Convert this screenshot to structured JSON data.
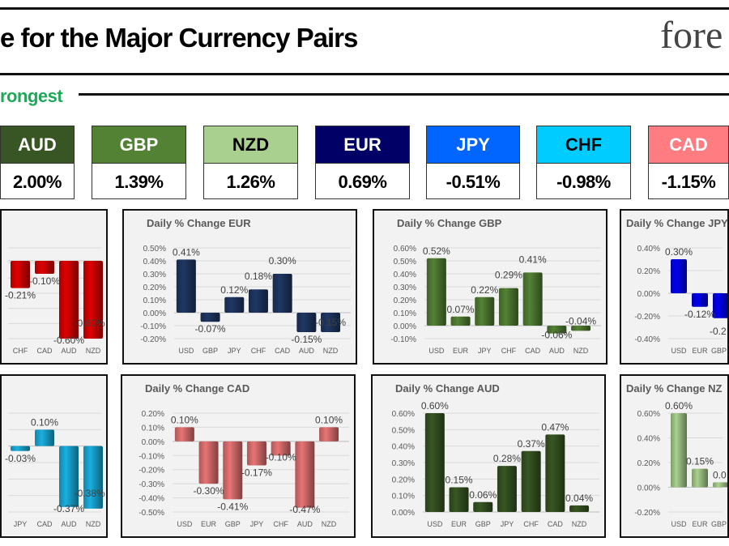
{
  "header": {
    "title": "e for the Major Currency Pairs",
    "logo_text": "fore"
  },
  "section": {
    "label": "rongest",
    "color": "#1fa85a"
  },
  "currencies": [
    {
      "code": "AUD",
      "value": "2.00%",
      "bg": "#375623",
      "fg": "#ffffff"
    },
    {
      "code": "GBP",
      "value": "1.39%",
      "bg": "#548235",
      "fg": "#ffffff"
    },
    {
      "code": "NZD",
      "value": "1.26%",
      "bg": "#a9d08e",
      "fg": "#000000"
    },
    {
      "code": "EUR",
      "value": "0.69%",
      "bg": "#000066",
      "fg": "#ffffff"
    },
    {
      "code": "JPY",
      "value": "-0.51%",
      "bg": "#0066ff",
      "fg": "#ffffff"
    },
    {
      "code": "CHF",
      "value": "-0.98%",
      "bg": "#00ccff",
      "fg": "#000000"
    },
    {
      "code": "CAD",
      "value": "-1.15%",
      "bg": "#ff7c80",
      "fg": "#ffffff"
    }
  ],
  "chart_data": [
    {
      "type": "bar",
      "title": "",
      "categories": [
        "CHF",
        "CAD",
        "AUD",
        "NZD"
      ],
      "values": [
        -0.21,
        -0.1,
        -0.6,
        -0.6
      ],
      "labels": [
        "-0.21%",
        "-0.10%",
        "-0.60%",
        "-0.60%"
      ],
      "color": "#e00000",
      "ylim": [
        -0.6,
        0.1
      ],
      "yticks": [],
      "clip": "left",
      "grid": true
    },
    {
      "type": "bar",
      "title": "Daily % Change EUR",
      "categories": [
        "USD",
        "GBP",
        "JPY",
        "CHF",
        "CAD",
        "AUD",
        "NZD"
      ],
      "values": [
        0.41,
        -0.07,
        0.12,
        0.18,
        0.3,
        -0.15,
        -0.15
      ],
      "labels": [
        "0.41%",
        "-0.07%",
        "0.12%",
        "0.18%",
        "0.30%",
        "-0.15%",
        "-0.15%"
      ],
      "color": "#1f3864",
      "ylim": [
        -0.2,
        0.5
      ],
      "yticks": [
        "0.50%",
        "0.40%",
        "0.30%",
        "0.20%",
        "0.10%",
        "0.00%",
        "-0.10%",
        "-0.20%"
      ],
      "grid": true
    },
    {
      "type": "bar",
      "title": "Daily % Change GBP",
      "categories": [
        "USD",
        "EUR",
        "JPY",
        "CHF",
        "CAD",
        "AUD",
        "NZD"
      ],
      "values": [
        0.52,
        0.07,
        0.22,
        0.29,
        0.41,
        -0.06,
        -0.04
      ],
      "labels": [
        "0.52%",
        "0.07%",
        "0.22%",
        "0.29%",
        "0.41%",
        "-0.06%",
        "-0.04%"
      ],
      "color": "#548235",
      "ylim": [
        -0.1,
        0.6
      ],
      "yticks": [
        "0.60%",
        "0.50%",
        "0.40%",
        "0.30%",
        "0.20%",
        "0.10%",
        "0.00%",
        "-0.10%"
      ],
      "grid": true
    },
    {
      "type": "bar",
      "title": "Daily % Change JPY",
      "categories": [
        "USD",
        "EUR",
        "GBP"
      ],
      "values": [
        0.3,
        -0.12,
        -0.22
      ],
      "labels": [
        "0.30%",
        "-0.12%",
        "-0.2"
      ],
      "color": "#0000ee",
      "ylim": [
        -0.4,
        0.4
      ],
      "yticks": [
        "0.40%",
        "0.20%",
        "0.00%",
        "-0.20%",
        "-0.40%"
      ],
      "clip": "right",
      "grid": true
    },
    {
      "type": "bar",
      "title": "",
      "categories": [
        "JPY",
        "CAD",
        "AUD",
        "NZD"
      ],
      "values": [
        -0.03,
        0.1,
        -0.37,
        -0.38
      ],
      "labels": [
        "-0.03%",
        "0.10%",
        "-0.37%",
        "-0.38%"
      ],
      "color": "#1ab0e0",
      "ylim": [
        -0.4,
        0.2
      ],
      "yticks": [],
      "clip": "left",
      "grid": true
    },
    {
      "type": "bar",
      "title": "Daily % Change CAD",
      "categories": [
        "USD",
        "EUR",
        "GBP",
        "JPY",
        "CHF",
        "AUD",
        "NZD"
      ],
      "values": [
        0.1,
        -0.3,
        -0.41,
        -0.17,
        -0.1,
        -0.47,
        0.1
      ],
      "labels": [
        "0.10%",
        "-0.30%",
        "-0.41%",
        "-0.17%",
        "-0.10%",
        "-0.47%",
        "0.10%"
      ],
      "color": "#e87474",
      "ylim": [
        -0.5,
        0.2
      ],
      "yticks": [
        "0.20%",
        "0.10%",
        "0.00%",
        "-0.10%",
        "-0.20%",
        "-0.30%",
        "-0.40%",
        "-0.50%"
      ],
      "grid": true
    },
    {
      "type": "bar",
      "title": "Daily % Change AUD",
      "categories": [
        "USD",
        "EUR",
        "GBP",
        "JPY",
        "CHF",
        "CAD",
        "NZD"
      ],
      "values": [
        0.6,
        0.15,
        0.06,
        0.28,
        0.37,
        0.47,
        0.04
      ],
      "labels": [
        "0.60%",
        "0.15%",
        "0.06%",
        "0.28%",
        "0.37%",
        "0.47%",
        "0.04%"
      ],
      "color": "#385723",
      "ylim": [
        0,
        0.6
      ],
      "yticks": [
        "0.60%",
        "0.50%",
        "0.40%",
        "0.30%",
        "0.20%",
        "0.10%",
        "0.00%"
      ],
      "grid": true
    },
    {
      "type": "bar",
      "title": "Daily % Change NZ",
      "categories": [
        "USD",
        "EUR",
        "GBP"
      ],
      "values": [
        0.6,
        0.15,
        0.04
      ],
      "labels": [
        "0.60%",
        "0.15%",
        "0.0"
      ],
      "color": "#a9d18e",
      "ylim": [
        -0.2,
        0.6
      ],
      "yticks": [
        "0.60%",
        "0.40%",
        "0.20%",
        "0.00%",
        "-0.20%"
      ],
      "clip": "right",
      "grid": true
    }
  ]
}
